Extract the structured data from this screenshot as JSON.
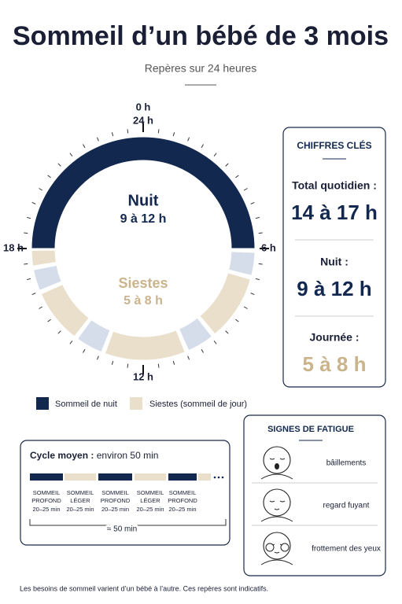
{
  "header": {
    "title": "Sommeil d’un bébé de 3 mois",
    "subtitle": "Repères sur 24 heures"
  },
  "clock": {
    "labels": {
      "top_outer": "0 h",
      "top_inner": "24 h",
      "right": "6 h",
      "bottom": "12 h",
      "left": "18 h"
    },
    "night": {
      "label": "Nuit",
      "value": "9 à 12 h"
    },
    "naps": {
      "label": "Siestes",
      "value": "5 à 8 h"
    }
  },
  "legend": [
    "Sommeil de nuit",
    "Siestes (sommeil de jour)"
  ],
  "key_figures": {
    "title": "CHIFFRES CLÉS",
    "items": [
      {
        "label": "Total quotidien :",
        "value": "14 à 17 h"
      },
      {
        "label": "Nuit :",
        "value": "9 à 12 h"
      },
      {
        "label": "Journée :",
        "value": "5 à 8 h"
      }
    ]
  },
  "cycle": {
    "title": "Cycle moyen :",
    "subtitle": "environ 50 min",
    "phases": [
      {
        "line1": "SOMMEIL",
        "line2": "PROFOND",
        "duration": "20–25 min"
      },
      {
        "line1": "SOMMEIL",
        "line2": "LÉGER",
        "duration": "20–25 min"
      },
      {
        "line1": "SOMMEIL",
        "line2": "PROFOND",
        "duration": "20–25 min"
      },
      {
        "line1": "SOMMEIL",
        "line2": "LÉGER",
        "duration": "20–25 min"
      },
      {
        "line1": "SOMMEIL",
        "line2": "PROFOND",
        "duration": "20–25 min"
      }
    ],
    "total": "≈ 50 min"
  },
  "fatigue": {
    "title": "SIGNES DE FATIGUE",
    "signs": [
      "bâillements",
      "regard fuyant",
      "frottement des yeux"
    ]
  },
  "footer": "Les besoins de sommeil varient d’un bébé à l’autre. Ces repères sont indicatifs."
}
